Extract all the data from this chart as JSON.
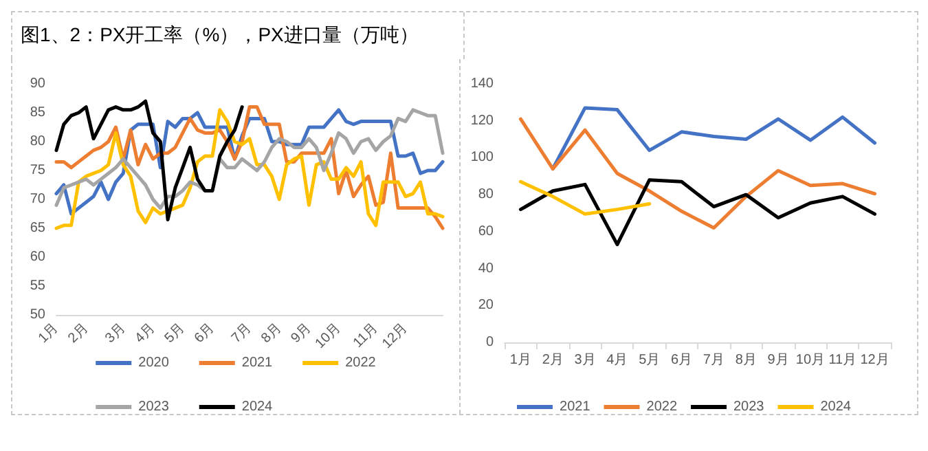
{
  "chart_data": [
    {
      "type": "line",
      "title": "图1、2：PX开工率（%），PX进口量（万吨）",
      "categories": [
        "1月",
        null,
        null,
        null,
        "2月",
        null,
        null,
        null,
        null,
        "3月",
        null,
        null,
        null,
        "4月",
        null,
        null,
        null,
        "5月",
        null,
        null,
        null,
        "6月",
        null,
        null,
        null,
        null,
        "7月",
        null,
        null,
        null,
        "8月",
        null,
        null,
        null,
        "9月",
        null,
        null,
        null,
        "10月",
        null,
        null,
        null,
        null,
        "11月",
        null,
        null,
        null,
        "12月",
        null,
        null,
        null,
        null,
        null
      ],
      "series": [
        {
          "name": "2020",
          "color": "#4472c4",
          "values": [
            71,
            72.5,
            67.5,
            68.5,
            69.5,
            70.5,
            73,
            70,
            73,
            74.5,
            82,
            83,
            83,
            83,
            75.5,
            83.5,
            82.5,
            84,
            84,
            85,
            82.5,
            82.5,
            82.5,
            82.5,
            77,
            81,
            84,
            84,
            84,
            80,
            80,
            79.5,
            79.5,
            79.5,
            82.5,
            82.5,
            82.5,
            84,
            85.5,
            83.5,
            83,
            83.5,
            83.5,
            83.5,
            83.5,
            83.5,
            77.5,
            77.5,
            78,
            74.5,
            75,
            75,
            76.5
          ]
        },
        {
          "name": "2021",
          "color": "#ed7d31",
          "values": [
            76.5,
            76.5,
            75.5,
            76.5,
            77.5,
            78.5,
            79,
            80,
            82.5,
            77,
            82,
            76,
            79.5,
            77,
            78,
            78,
            79,
            81.5,
            84,
            82,
            81.5,
            81.5,
            82,
            80,
            77,
            80,
            86,
            86,
            83,
            83,
            83,
            76.5,
            76.5,
            78,
            78,
            78,
            78,
            80.5,
            71,
            75,
            70.5,
            72.5,
            74,
            69,
            69.5,
            78,
            68.5,
            68.5,
            68.5,
            68.5,
            68.5,
            67,
            65
          ]
        },
        {
          "name": "2022",
          "color": "#ffc000",
          "values": [
            65,
            65.5,
            65.5,
            73,
            74,
            74.5,
            75,
            76,
            81.5,
            76,
            74,
            68,
            66,
            68.5,
            67.5,
            68,
            68.5,
            69,
            72,
            76.5,
            77.5,
            77.5,
            85.5,
            83.5,
            80,
            79.5,
            80.5,
            76,
            76,
            74,
            70,
            76,
            77,
            77.5,
            69,
            76,
            76.5,
            73.5,
            73.5,
            75.5,
            74,
            76.5,
            67.5,
            65.5,
            73,
            73,
            73,
            70.5,
            71,
            73,
            67.5,
            67.5,
            67
          ]
        },
        {
          "name": "2023",
          "color": "#a5a5a5",
          "values": [
            69,
            72,
            72.5,
            73,
            73.5,
            72.5,
            73.5,
            74.5,
            75.5,
            77,
            75.5,
            74,
            72.5,
            70,
            68.5,
            70.5,
            70.5,
            71.5,
            73,
            72.5,
            71.5,
            71.5,
            77,
            75.5,
            75.5,
            77,
            76,
            75,
            76.5,
            79,
            80.5,
            80,
            79,
            79,
            80.5,
            79,
            75,
            78,
            81.5,
            80.5,
            78,
            80,
            80.5,
            78.5,
            80,
            81,
            84,
            83.5,
            85.5,
            85,
            84.5,
            84.5,
            78
          ]
        },
        {
          "name": "2024",
          "color": "#000000",
          "values": [
            78.5,
            83,
            84.5,
            85,
            86,
            80.5,
            83,
            85.5,
            86,
            85.5,
            85.5,
            86,
            87,
            81.5,
            80,
            66.5,
            72,
            75.5,
            79,
            73.5,
            71.5,
            71.5,
            77.5,
            80,
            82,
            86,
            null,
            null,
            null,
            null,
            null,
            null,
            null,
            null,
            null,
            null,
            null,
            null,
            null,
            null,
            null,
            null,
            null,
            null,
            null,
            null,
            null,
            null,
            null,
            null,
            null,
            null,
            null
          ]
        }
      ],
      "ylim": [
        50,
        90
      ],
      "yticks": [
        50,
        55,
        60,
        65,
        70,
        75,
        80,
        85,
        90
      ],
      "grid": false,
      "legend": "bottom",
      "marker": "none"
    },
    {
      "type": "line",
      "categories": [
        "1月",
        "2月",
        "3月",
        "4月",
        "5月",
        "6月",
        "7月",
        "8月",
        "9月",
        "10月",
        "11月",
        "12月"
      ],
      "series": [
        {
          "name": "2021",
          "color": "#4472c4",
          "values": [
            null,
            94,
            127,
            126,
            104,
            114,
            111.5,
            110,
            121,
            109.5,
            122,
            108
          ]
        },
        {
          "name": "2022",
          "color": "#ed7d31",
          "values": [
            121,
            94,
            115,
            91.5,
            82,
            71,
            62,
            79,
            93,
            85,
            86,
            80.5
          ]
        },
        {
          "name": "2023",
          "color": "#000000",
          "values": [
            72,
            82,
            85.5,
            53,
            88,
            87,
            73.5,
            80,
            67.5,
            75.5,
            79,
            69.5
          ]
        },
        {
          "name": "2024",
          "color": "#ffc000",
          "values": [
            87,
            79,
            69.5,
            72,
            75,
            null,
            null,
            null,
            null,
            null,
            null,
            null
          ]
        }
      ],
      "ylim": [
        0,
        140
      ],
      "yticks": [
        0,
        20,
        40,
        60,
        80,
        100,
        120,
        140
      ],
      "grid": false,
      "legend": "bottom",
      "marker": "none"
    }
  ]
}
